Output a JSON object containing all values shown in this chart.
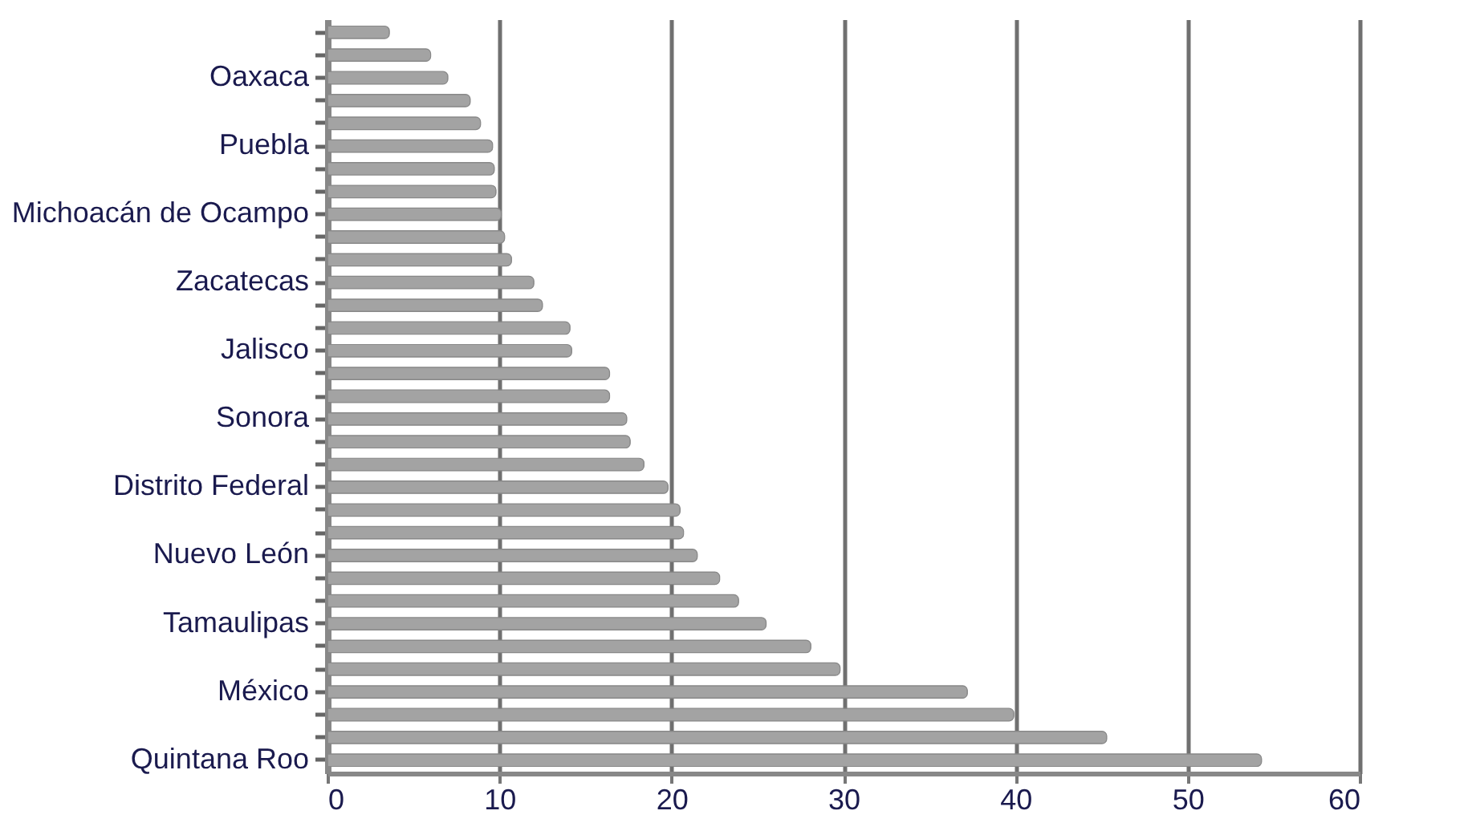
{
  "chart_data": {
    "type": "bar",
    "orientation": "horizontal",
    "categories": [
      null,
      null,
      "Oaxaca",
      null,
      null,
      "Puebla",
      null,
      null,
      "Michoacán de Ocampo",
      null,
      null,
      "Zacatecas",
      null,
      null,
      "Jalisco",
      null,
      null,
      "Sonora",
      null,
      null,
      "Distrito Federal",
      null,
      null,
      "Nuevo León",
      null,
      null,
      "Tamaulipas",
      null,
      null,
      "México",
      null,
      null,
      "Quintana Roo"
    ],
    "values": [
      3.6,
      6.0,
      7.0,
      8.3,
      8.9,
      9.6,
      9.7,
      9.8,
      10.1,
      10.3,
      10.7,
      12.0,
      12.5,
      14.1,
      14.2,
      16.4,
      16.4,
      17.4,
      17.6,
      18.4,
      19.8,
      20.5,
      20.7,
      21.5,
      22.8,
      23.9,
      25.5,
      28.1,
      29.8,
      37.2,
      39.9,
      45.3,
      54.3
    ],
    "color": "#a3a3a3",
    "xlim": [
      0,
      60
    ],
    "xticks": [
      0,
      10,
      20,
      30,
      40,
      50,
      60
    ],
    "grid": "x"
  }
}
